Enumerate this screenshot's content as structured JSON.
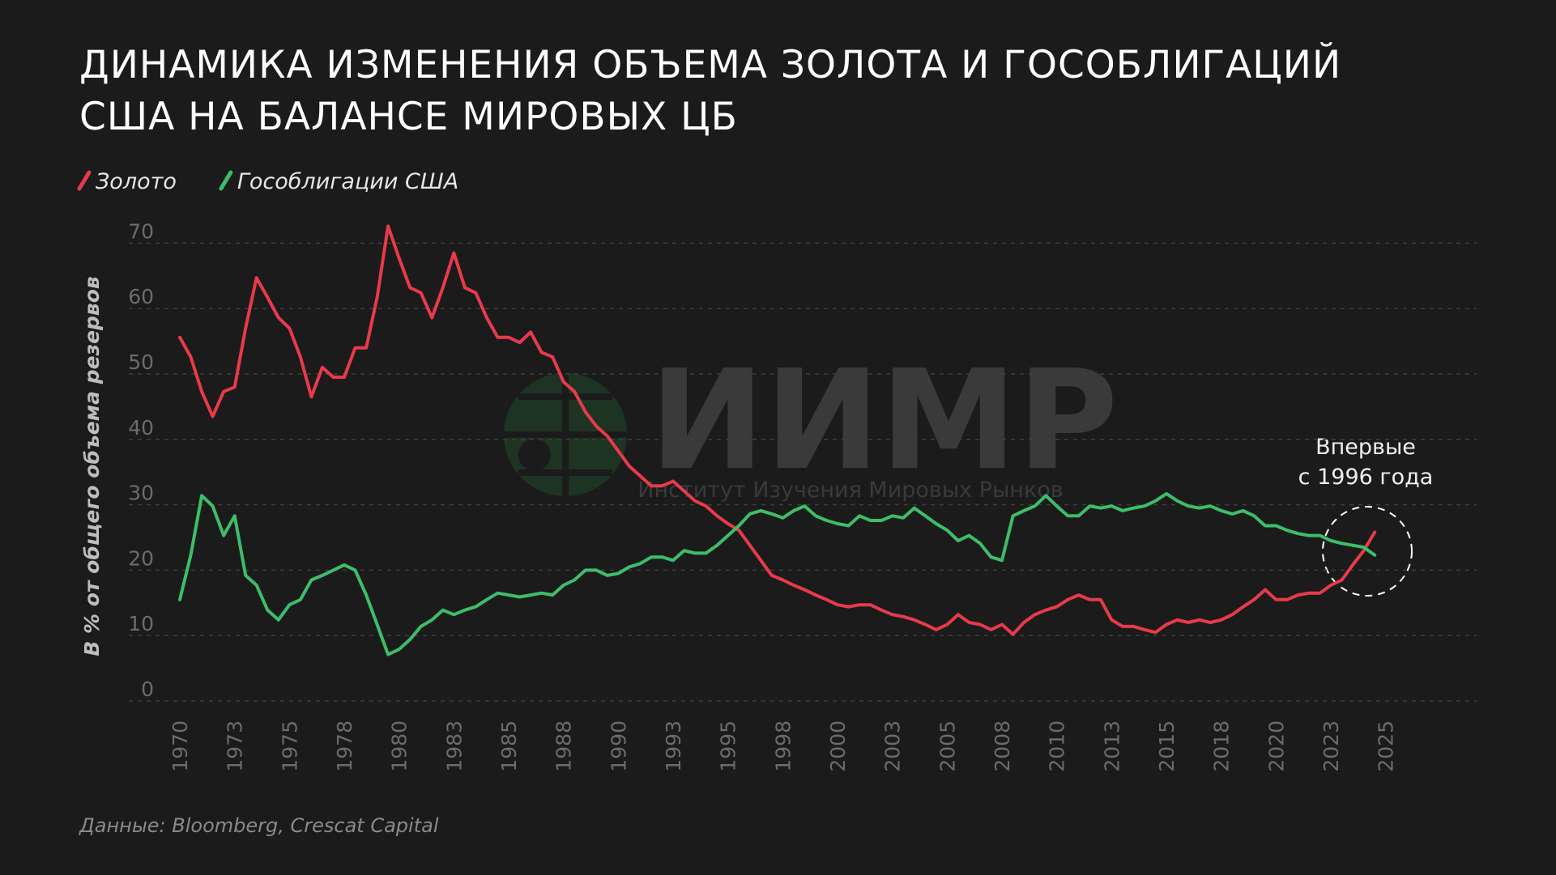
{
  "chart_data": {
    "type": "line",
    "title": [
      "Динамика изменения объема золота и гособлигаций",
      "США на балансе мировых ЦБ"
    ],
    "ylabel": "В % от общего объема резервов",
    "source": "Данные: Bloomberg, Crescat Capital",
    "watermark": "ИИМР",
    "watermark_subtitle": "Институт Изучения Мировых Рынков",
    "annotation": [
      "Впервые",
      "с 1996 года"
    ],
    "grid": true,
    "xlim": [
      1970,
      2029
    ],
    "ylim": [
      0,
      75
    ],
    "yticks": [
      0,
      10,
      20,
      30,
      40,
      50,
      60,
      70
    ],
    "xticks": [
      1970,
      {
        "value": 1972.5,
        "label": "1973"
      },
      1975,
      {
        "value": 1977.5,
        "label": "1978"
      },
      1980,
      {
        "value": 1982.5,
        "label": "1983"
      },
      1985,
      {
        "value": 1987.5,
        "label": "1988"
      },
      1990,
      {
        "value": 1992.5,
        "label": "1993"
      },
      1995,
      {
        "value": 1997.5,
        "label": "1998"
      },
      2000,
      {
        "value": 2002.5,
        "label": "2003"
      },
      2005,
      {
        "value": 2007.5,
        "label": "2008"
      },
      2010,
      {
        "value": 2012.5,
        "label": "2013"
      },
      2015,
      {
        "value": 2017.5,
        "label": "2018"
      },
      2020,
      {
        "value": 2022.5,
        "label": "2023"
      },
      2025
    ],
    "x": [
      1970,
      1970.5,
      1971,
      1971.5,
      1972,
      1972.5,
      1973,
      1973.5,
      1974,
      1974.5,
      1975,
      1975.5,
      1976,
      1976.5,
      1977,
      1977.5,
      1978,
      1978.5,
      1979,
      1979.5,
      1980,
      1980.5,
      1981,
      1981.5,
      1982,
      1982.5,
      1983,
      1983.5,
      1984,
      1984.5,
      1985,
      1985.5,
      1986,
      1986.5,
      1987,
      1987.5,
      1988,
      1988.5,
      1989,
      1989.5,
      1990,
      1990.5,
      1991,
      1991.5,
      1992,
      1992.5,
      1993,
      1993.5,
      1994,
      1994.5,
      1995,
      1995.5,
      1996,
      1996.5,
      1997,
      1997.5,
      1998,
      1998.5,
      1999,
      1999.5,
      2000,
      2000.5,
      2001,
      2001.5,
      2002,
      2002.5,
      2003,
      2003.5,
      2004,
      2004.5,
      2005,
      2005.5,
      2006,
      2006.5,
      2007,
      2007.5,
      2008,
      2008.5,
      2009,
      2009.5,
      2010,
      2010.5,
      2011,
      2011.5,
      2012,
      2012.5,
      2013,
      2013.5,
      2014,
      2014.5,
      2015,
      2015.5,
      2016,
      2016.5,
      2017,
      2017.5,
      2018,
      2018.5,
      2019,
      2019.5,
      2020,
      2020.5,
      2021,
      2021.5,
      2022,
      2022.5,
      2023,
      2023.5,
      2024,
      2024.5
    ],
    "series": [
      {
        "name": "Золото",
        "color": "#e83a4a",
        "values": [
          55.6,
          52.6,
          47.3,
          43.5,
          47.3,
          48,
          57,
          64.7,
          61.7,
          58.6,
          57,
          52.6,
          46.5,
          51,
          49.5,
          49.5,
          54,
          54,
          61.7,
          72.6,
          67.7,
          63.2,
          62.4,
          58.6,
          63.2,
          68.5,
          63.2,
          62.4,
          58.6,
          55.6,
          55.6,
          54.8,
          56.4,
          53.3,
          52.6,
          48.8,
          47.3,
          44.2,
          42,
          40.5,
          38.2,
          35.9,
          34.4,
          32.9,
          32.9,
          33.6,
          32.1,
          30.6,
          29.8,
          28.3,
          27.1,
          26.1,
          23.8,
          21.5,
          19.2,
          18.5,
          17.7,
          17,
          16.2,
          15.5,
          14.7,
          14.4,
          14.7,
          14.7,
          13.9,
          13.2,
          12.9,
          12.4,
          11.7,
          10.9,
          11.7,
          13.2,
          12,
          11.7,
          10.9,
          11.7,
          10.2,
          12,
          13.2,
          13.9,
          14.4,
          15.5,
          16.2,
          15.5,
          15.5,
          12.4,
          11.4,
          11.4,
          10.9,
          10.5,
          11.7,
          12.4,
          12,
          12.4,
          12,
          12.4,
          13.2,
          14.4,
          15.5,
          17,
          15.5,
          15.5,
          16.2,
          16.5,
          16.5,
          17.7,
          18.5,
          20.8,
          23,
          25.8
        ]
      },
      {
        "name": "Гособлигации США",
        "color": "#3dbd6a",
        "values": [
          15.5,
          22.3,
          31.4,
          29.8,
          25.3,
          28.3,
          19.2,
          17.7,
          13.9,
          12.4,
          14.7,
          15.5,
          18.5,
          19.2,
          20,
          20.8,
          20,
          16.2,
          11.7,
          7.1,
          7.9,
          9.4,
          11.4,
          12.4,
          13.9,
          13.2,
          13.9,
          14.4,
          15.5,
          16.5,
          16.2,
          15.9,
          16.2,
          16.5,
          16.2,
          17.7,
          18.5,
          20,
          20,
          19.2,
          19.5,
          20.5,
          21,
          22,
          22,
          21.5,
          23,
          22.6,
          22.6,
          23.8,
          25.3,
          26.8,
          28.6,
          29.1,
          28.6,
          28,
          29.1,
          29.8,
          28.3,
          27.6,
          27.1,
          26.8,
          28.3,
          27.6,
          27.6,
          28.3,
          28,
          29.5,
          28.3,
          27.1,
          26.1,
          24.5,
          25.3,
          24.1,
          22,
          21.5,
          28.3,
          29.1,
          29.8,
          31.4,
          29.8,
          28.3,
          28.3,
          29.8,
          29.5,
          29.8,
          29.1,
          29.5,
          29.8,
          30.6,
          31.7,
          30.6,
          29.8,
          29.5,
          29.8,
          29.1,
          28.6,
          29.1,
          28.3,
          26.8,
          26.8,
          26.1,
          25.6,
          25.3,
          25.3,
          24.5,
          24.1,
          23.8,
          23.5,
          22.3
        ]
      }
    ]
  }
}
